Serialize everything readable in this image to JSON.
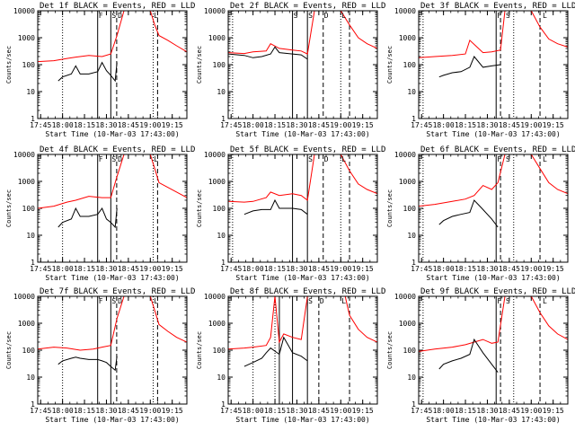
{
  "chart_data": [
    {
      "type": "line",
      "title": "Det 1f BLACK = Events, RED = LLD",
      "xlabel": "Start Time (10-Mar-03 17:43:00)",
      "ylabel": "Counts/sec",
      "yscale": "log",
      "ylim": [
        1,
        10000
      ],
      "xlim": [
        17.717,
        19.417
      ],
      "x_ticks": [
        "17:45",
        "18:00",
        "18:15",
        "18:30",
        "18:45",
        "19:00",
        "19:15"
      ],
      "y_ticks": [
        "1",
        "10",
        "100",
        "1000",
        "10000"
      ],
      "dotted_lines": [
        18.0,
        19.033
      ],
      "solid_lines": [
        18.4,
        18.55
      ],
      "dashed_lines": [
        18.617,
        19.083
      ],
      "labels": [
        {
          "text": "F",
          "x": 18.4
        },
        {
          "text": "S",
          "x": 18.55
        },
        {
          "text": "D",
          "x": 18.62
        },
        {
          "text": "L",
          "x": 19.03
        }
      ],
      "series": [
        {
          "name": "LLD",
          "color": "#ff0000",
          "x": [
            17.717,
            17.9,
            18.05,
            18.15,
            18.3,
            18.45,
            18.55,
            18.62,
            18.7,
            18.85,
            19.0,
            19.05,
            19.1,
            19.2,
            19.3,
            19.417
          ],
          "y": [
            130,
            140,
            170,
            190,
            220,
            200,
            250,
            1200,
            10000,
            10000,
            10000,
            3000,
            1200,
            800,
            500,
            300
          ]
        },
        {
          "name": "Events",
          "color": "#000000",
          "x": [
            17.95,
            18.0,
            18.1,
            18.15,
            18.2,
            18.3,
            18.4,
            18.45,
            18.5,
            18.55,
            18.6,
            18.62
          ],
          "y": [
            25,
            35,
            45,
            90,
            45,
            45,
            55,
            120,
            60,
            40,
            25,
            120
          ]
        }
      ]
    },
    {
      "type": "line",
      "title": "Det 2f BLACK = Events, RED = LLD",
      "xlabel": "Start Time (10-Mar-03 17:43:00)",
      "ylabel": "Counts/sec",
      "yscale": "log",
      "ylim": [
        1,
        10000
      ],
      "xlim": [
        17.717,
        19.417
      ],
      "x_ticks": [
        "17:45",
        "18:00",
        "18:15",
        "18:30",
        "18:45",
        "19:00",
        "19:15"
      ],
      "y_ticks": [
        "1",
        "10",
        "100",
        "1000",
        "10000"
      ],
      "dotted_lines": [
        17.767,
        19.0
      ],
      "solid_lines": [
        18.45,
        18.62
      ],
      "dashed_lines": [
        18.8,
        19.1
      ],
      "labels": [
        {
          "text": "S",
          "x": 18.45
        },
        {
          "text": "S",
          "x": 18.62
        },
        {
          "text": "D",
          "x": 18.8
        },
        {
          "text": "L",
          "x": 19.0
        }
      ],
      "series": [
        {
          "name": "LLD",
          "color": "#ff0000",
          "x": [
            17.717,
            17.9,
            18.0,
            18.15,
            18.2,
            18.3,
            18.45,
            18.55,
            18.62,
            18.7,
            18.8,
            19.0,
            19.1,
            19.2,
            19.3,
            19.417
          ],
          "y": [
            280,
            260,
            300,
            320,
            600,
            400,
            350,
            320,
            250,
            10000,
            10000,
            10000,
            3000,
            1000,
            600,
            400
          ]
        },
        {
          "name": "Events",
          "color": "#000000",
          "x": [
            17.717,
            17.9,
            18.0,
            18.1,
            18.2,
            18.25,
            18.3,
            18.45,
            18.55,
            18.62
          ],
          "y": [
            250,
            220,
            180,
            200,
            250,
            450,
            280,
            250,
            230,
            160
          ]
        }
      ]
    },
    {
      "type": "line",
      "title": "Det 3f BLACK = Events, RED = LLD",
      "xlabel": "Start Time (10-Mar-03 17:43:00)",
      "ylabel": "Counts/sec",
      "yscale": "log",
      "ylim": [
        1,
        10000
      ],
      "xlim": [
        17.717,
        19.417
      ],
      "x_ticks": [
        "17:45",
        "18:00",
        "18:15",
        "18:30",
        "18:45",
        "19:00",
        "19:15"
      ],
      "y_ticks": [
        "1",
        "10",
        "100",
        "1000",
        "10000"
      ],
      "dotted_lines": [
        17.767,
        18.8
      ],
      "solid_lines": [
        18.6
      ],
      "dashed_lines": [
        18.65,
        19.1
      ],
      "labels": [
        {
          "text": "F",
          "x": 18.6
        },
        {
          "text": "S",
          "x": 18.7
        },
        {
          "text": "L",
          "x": 19.12
        }
      ],
      "series": [
        {
          "name": "LLD",
          "color": "#ff0000",
          "x": [
            17.717,
            17.9,
            18.1,
            18.25,
            18.3,
            18.45,
            18.55,
            18.65,
            18.7,
            18.75,
            18.85,
            19.0,
            19.1,
            19.2,
            19.3,
            19.417
          ],
          "y": [
            180,
            200,
            220,
            250,
            800,
            280,
            300,
            350,
            10000,
            10000,
            10000,
            10000,
            2500,
            900,
            600,
            450
          ]
        },
        {
          "name": "Events",
          "color": "#000000",
          "x": [
            17.95,
            18.0,
            18.1,
            18.2,
            18.3,
            18.35,
            18.45,
            18.55,
            18.65
          ],
          "y": [
            35,
            40,
            50,
            55,
            80,
            200,
            80,
            90,
            100
          ]
        }
      ]
    },
    {
      "type": "line",
      "title": "Det 4f BLACK = Events, RED = LLD",
      "xlabel": "Start Time (10-Mar-03 17:43:00)",
      "ylabel": "Counts/sec",
      "yscale": "log",
      "ylim": [
        1,
        10000
      ],
      "xlim": [
        17.717,
        19.417
      ],
      "x_ticks": [
        "17:45",
        "18:00",
        "18:15",
        "18:30",
        "18:45",
        "19:00",
        "19:15"
      ],
      "y_ticks": [
        "1",
        "10",
        "100",
        "1000",
        "10000"
      ],
      "dotted_lines": [
        18.0,
        19.033
      ],
      "solid_lines": [
        18.4,
        18.55
      ],
      "dashed_lines": [
        18.617,
        19.083
      ],
      "labels": [
        {
          "text": "F",
          "x": 18.4
        },
        {
          "text": "S",
          "x": 18.55
        },
        {
          "text": "D",
          "x": 18.62
        },
        {
          "text": "L",
          "x": 19.03
        }
      ],
      "series": [
        {
          "name": "LLD",
          "color": "#ff0000",
          "x": [
            17.717,
            17.9,
            18.05,
            18.15,
            18.3,
            18.45,
            18.55,
            18.62,
            18.7,
            18.85,
            19.0,
            19.05,
            19.1,
            19.2,
            19.3,
            19.417
          ],
          "y": [
            100,
            120,
            170,
            200,
            280,
            250,
            250,
            1500,
            10000,
            10000,
            10000,
            3000,
            900,
            600,
            400,
            250
          ]
        },
        {
          "name": "Events",
          "color": "#000000",
          "x": [
            17.95,
            18.0,
            18.1,
            18.15,
            18.2,
            18.3,
            18.4,
            18.45,
            18.5,
            18.55,
            18.6,
            18.62
          ],
          "y": [
            20,
            30,
            40,
            100,
            50,
            50,
            60,
            100,
            40,
            30,
            20,
            100
          ]
        }
      ]
    },
    {
      "type": "line",
      "title": "Det 5f BLACK = Events, RED = LLD",
      "xlabel": "Start Time (10-Mar-03 17:43:00)",
      "ylabel": "Counts/sec",
      "yscale": "log",
      "ylim": [
        1,
        10000
      ],
      "xlim": [
        17.717,
        19.417
      ],
      "x_ticks": [
        "17:45",
        "18:00",
        "18:15",
        "18:30",
        "18:45",
        "19:00",
        "19:15"
      ],
      "y_ticks": [
        "1",
        "10",
        "100",
        "1000",
        "10000"
      ],
      "dotted_lines": [
        17.767,
        19.0
      ],
      "solid_lines": [
        18.45,
        18.62
      ],
      "dashed_lines": [
        18.8,
        19.1
      ],
      "labels": [
        {
          "text": "S",
          "x": 18.62
        },
        {
          "text": "D",
          "x": 18.8
        },
        {
          "text": "L",
          "x": 19.0
        }
      ],
      "series": [
        {
          "name": "LLD",
          "color": "#ff0000",
          "x": [
            17.717,
            17.9,
            18.0,
            18.15,
            18.2,
            18.3,
            18.45,
            18.55,
            18.62,
            18.7,
            18.8,
            19.0,
            19.1,
            19.2,
            19.3,
            19.417
          ],
          "y": [
            180,
            170,
            180,
            250,
            400,
            300,
            350,
            300,
            200,
            10000,
            10000,
            10000,
            2500,
            800,
            500,
            350
          ]
        },
        {
          "name": "Events",
          "color": "#000000",
          "x": [
            17.9,
            18.0,
            18.1,
            18.2,
            18.25,
            18.3,
            18.45,
            18.55,
            18.62
          ],
          "y": [
            60,
            80,
            90,
            90,
            200,
            100,
            100,
            90,
            60
          ]
        }
      ]
    },
    {
      "type": "line",
      "title": "Det 6f BLACK = Events, RED = LLD",
      "xlabel": "Start Time (10-Mar-03 17:43:00)",
      "ylabel": "Counts/sec",
      "yscale": "log",
      "ylim": [
        1,
        10000
      ],
      "xlim": [
        17.717,
        19.417
      ],
      "x_ticks": [
        "17:45",
        "18:00",
        "18:15",
        "18:30",
        "18:45",
        "19:00",
        "19:15"
      ],
      "y_ticks": [
        "1",
        "10",
        "100",
        "1000",
        "10000"
      ],
      "dotted_lines": [
        17.767,
        18.8
      ],
      "solid_lines": [
        18.6
      ],
      "dashed_lines": [
        18.65,
        19.1
      ],
      "labels": [
        {
          "text": "F",
          "x": 18.6
        },
        {
          "text": "S",
          "x": 18.7
        },
        {
          "text": "L",
          "x": 19.12
        }
      ],
      "series": [
        {
          "name": "LLD",
          "color": "#ff0000",
          "x": [
            17.717,
            17.9,
            18.1,
            18.25,
            18.35,
            18.45,
            18.55,
            18.62,
            18.7,
            18.75,
            18.85,
            19.0,
            19.1,
            19.2,
            19.3,
            19.417
          ],
          "y": [
            120,
            140,
            180,
            220,
            300,
            700,
            500,
            900,
            10000,
            10000,
            10000,
            10000,
            3000,
            900,
            500,
            350
          ]
        },
        {
          "name": "Events",
          "color": "#000000",
          "x": [
            17.95,
            18.0,
            18.1,
            18.2,
            18.3,
            18.35,
            18.45,
            18.55,
            18.62
          ],
          "y": [
            25,
            35,
            50,
            60,
            70,
            200,
            90,
            40,
            20
          ]
        }
      ]
    },
    {
      "type": "line",
      "title": "Det 7f BLACK = Events, RED = LLD",
      "xlabel": "Start Time (10-Mar-03 17:43:00)",
      "ylabel": "Counts/sec",
      "yscale": "log",
      "ylim": [
        1,
        10000
      ],
      "xlim": [
        17.717,
        19.417
      ],
      "x_ticks": [
        "17:45",
        "18:00",
        "18:15",
        "18:30",
        "18:45",
        "19:00",
        "19:15"
      ],
      "y_ticks": [
        "1",
        "10",
        "100",
        "1000",
        "10000"
      ],
      "dotted_lines": [
        18.0,
        19.033
      ],
      "solid_lines": [
        18.4,
        18.55
      ],
      "dashed_lines": [
        18.617,
        19.083
      ],
      "labels": [
        {
          "text": "F",
          "x": 18.4
        },
        {
          "text": "S",
          "x": 18.55
        },
        {
          "text": "D",
          "x": 18.62
        },
        {
          "text": "L",
          "x": 19.03
        }
      ],
      "series": [
        {
          "name": "LLD",
          "color": "#ff0000",
          "x": [
            17.717,
            17.9,
            18.05,
            18.2,
            18.35,
            18.45,
            18.55,
            18.62,
            18.7,
            18.85,
            19.0,
            19.05,
            19.1,
            19.2,
            19.3,
            19.417
          ],
          "y": [
            110,
            130,
            120,
            100,
            110,
            130,
            150,
            1500,
            10000,
            10000,
            10000,
            3000,
            900,
            500,
            300,
            200
          ]
        },
        {
          "name": "Events",
          "color": "#000000",
          "x": [
            17.95,
            18.0,
            18.1,
            18.15,
            18.2,
            18.3,
            18.4,
            18.45,
            18.5,
            18.55,
            18.6,
            18.62
          ],
          "y": [
            30,
            40,
            50,
            55,
            50,
            45,
            45,
            40,
            35,
            25,
            18,
            60
          ]
        }
      ]
    },
    {
      "type": "line",
      "title": "Det 8f BLACK = Events, RED = LLD",
      "xlabel": "Start Time (10-Mar-03 17:43:00)",
      "ylabel": "Counts/sec",
      "yscale": "log",
      "ylim": [
        1,
        10000
      ],
      "xlim": [
        17.717,
        19.417
      ],
      "x_ticks": [
        "17:45",
        "18:00",
        "18:15",
        "18:30",
        "18:45",
        "19:00",
        "19:15"
      ],
      "y_ticks": [
        "1",
        "10",
        "100",
        "1000",
        "10000"
      ],
      "dotted_lines": [
        18.0,
        18.25
      ],
      "solid_lines": [
        18.3,
        18.45,
        18.62
      ],
      "dashed_lines": [
        18.75,
        19.1
      ],
      "labels": [
        {
          "text": "S",
          "x": 18.62
        },
        {
          "text": "D",
          "x": 18.75
        },
        {
          "text": "L",
          "x": 19.0
        }
      ],
      "series": [
        {
          "name": "LLD",
          "color": "#ff0000",
          "x": [
            17.717,
            17.9,
            18.0,
            18.15,
            18.2,
            18.25,
            18.3,
            18.35,
            18.45,
            18.55,
            18.62,
            18.7,
            18.75,
            18.9,
            19.05,
            19.1,
            19.2,
            19.3,
            19.417
          ],
          "y": [
            110,
            120,
            130,
            150,
            300,
            10000,
            200,
            400,
            300,
            250,
            10000,
            10000,
            10000,
            10000,
            10000,
            2000,
            600,
            300,
            200
          ]
        },
        {
          "name": "Events",
          "color": "#000000",
          "x": [
            17.9,
            18.0,
            18.1,
            18.15,
            18.2,
            18.3,
            18.35,
            18.45,
            18.55,
            18.62
          ],
          "y": [
            25,
            35,
            50,
            80,
            120,
            70,
            300,
            80,
            60,
            40
          ]
        }
      ]
    },
    {
      "type": "line",
      "title": "Det 9f BLACK = Events, RED = LLD",
      "xlabel": "Start Time (10-Mar-03 17:43:00)",
      "ylabel": "Counts/sec",
      "yscale": "log",
      "ylim": [
        1,
        10000
      ],
      "xlim": [
        17.717,
        19.417
      ],
      "x_ticks": [
        "17:45",
        "18:00",
        "18:15",
        "18:30",
        "18:45",
        "19:00",
        "19:15"
      ],
      "y_ticks": [
        "1",
        "10",
        "100",
        "1000",
        "10000"
      ],
      "dotted_lines": [
        17.767,
        18.8
      ],
      "solid_lines": [
        18.6
      ],
      "dashed_lines": [
        18.65,
        19.1
      ],
      "labels": [
        {
          "text": "F",
          "x": 18.6
        },
        {
          "text": "S",
          "x": 18.7
        },
        {
          "text": "L",
          "x": 19.12
        }
      ],
      "series": [
        {
          "name": "LLD",
          "color": "#ff0000",
          "x": [
            17.717,
            17.9,
            18.1,
            18.25,
            18.35,
            18.45,
            18.55,
            18.62,
            18.7,
            18.75,
            18.85,
            19.0,
            19.1,
            19.2,
            19.3,
            19.417
          ],
          "y": [
            90,
            110,
            130,
            160,
            200,
            250,
            180,
            200,
            10000,
            10000,
            10000,
            10000,
            2500,
            800,
            400,
            250
          ]
        },
        {
          "name": "Events",
          "color": "#000000",
          "x": [
            17.95,
            18.0,
            18.1,
            18.2,
            18.3,
            18.35,
            18.45,
            18.55,
            18.62
          ],
          "y": [
            20,
            30,
            40,
            50,
            70,
            250,
            80,
            30,
            15
          ]
        }
      ]
    }
  ]
}
